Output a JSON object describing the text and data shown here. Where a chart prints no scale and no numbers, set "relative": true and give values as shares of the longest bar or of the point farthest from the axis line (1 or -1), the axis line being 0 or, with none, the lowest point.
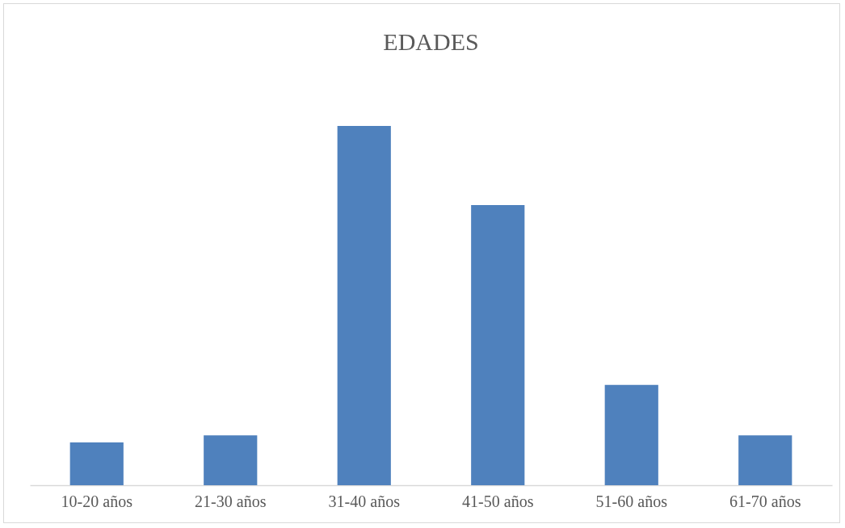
{
  "chart_data": {
    "type": "bar",
    "title": "EDADES",
    "relative": true,
    "categories": [
      "10-20 años",
      "21-30 años",
      "31-40 años",
      "41-50 años",
      "51-60 años",
      "61-70 años"
    ],
    "values": [
      0.119,
      0.139,
      1,
      0.78,
      0.279,
      0.139
    ],
    "color": "#4f81bd"
  }
}
